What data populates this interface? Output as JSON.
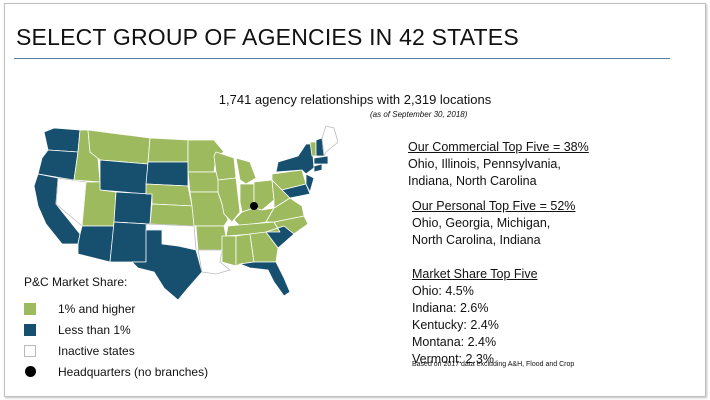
{
  "title": "SELECT GROUP OF AGENCIES IN 42 STATES",
  "subtitle": "1,741 agency relationships with 2,319 locations",
  "as_of": "(as of September 30, 2018)",
  "commercial": {
    "heading": "Our Commercial Top Five = 38%",
    "lines": [
      "Ohio, Illinois, Pennsylvania,",
      "Indiana, North Carolina"
    ]
  },
  "personal": {
    "heading": "Our Personal Top Five = 52%",
    "lines": [
      "Ohio, Georgia, Michigan,",
      "North Carolina, Indiana"
    ]
  },
  "market_share": {
    "heading": "Market Share Top Five",
    "items": [
      "Ohio: 4.5%",
      "Indiana: 2.6%",
      "Kentucky: 2.4%",
      "Montana: 2.4%",
      "Vermont: 2.3%"
    ]
  },
  "footnote": "Based on 2017 data excluding A&H, Flood and Crop",
  "legend": {
    "title": "P&C Market Share:",
    "items": [
      {
        "label": "1% and higher",
        "color": "#9dbb5e"
      },
      {
        "label": "Less than 1%",
        "color": "#17506f"
      },
      {
        "label": "Inactive states",
        "color": "#ffffff"
      },
      {
        "label": "Headquarters (no branches)",
        "color": "#000000"
      }
    ]
  },
  "colors": {
    "green": "#9dbb5e",
    "blue": "#17506f",
    "rule": "#5c7fa6"
  }
}
